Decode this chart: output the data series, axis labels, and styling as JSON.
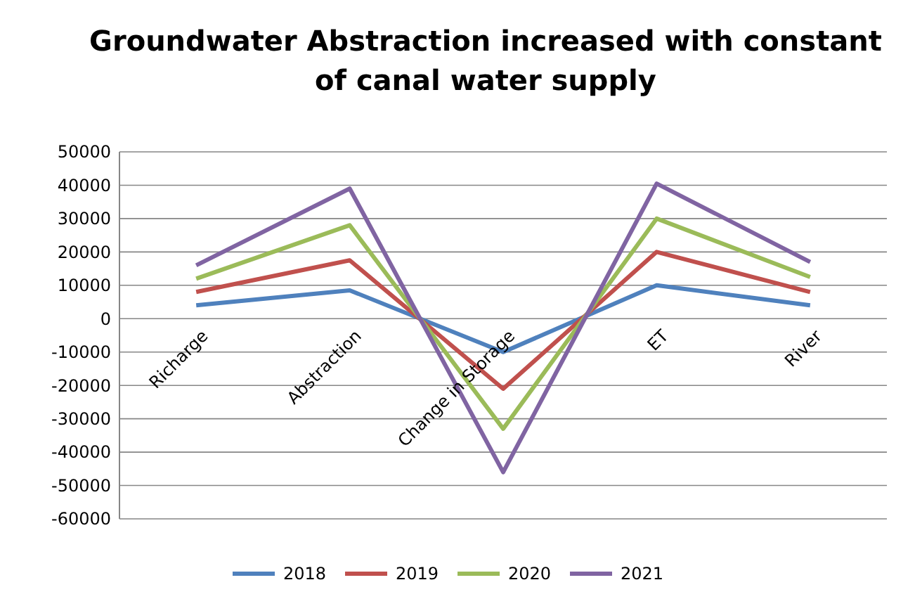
{
  "chart_data": {
    "type": "line",
    "title": "Groundwater Abstraction increased with constant of canal water supply",
    "categories": [
      "Richarge",
      "Abstraction",
      "Change in Storage",
      "ET",
      "River"
    ],
    "series": [
      {
        "name": "2018",
        "color": "#4f81bd",
        "values": [
          4000,
          8500,
          -10000,
          10000,
          4000
        ]
      },
      {
        "name": "2019",
        "color": "#c0504d",
        "values": [
          8000,
          17500,
          -21000,
          20000,
          8000
        ]
      },
      {
        "name": "2020",
        "color": "#9bbb59",
        "values": [
          12000,
          28000,
          -33000,
          30000,
          12500
        ]
      },
      {
        "name": "2021",
        "color": "#8064a2",
        "values": [
          16000,
          39000,
          -46000,
          40500,
          17000
        ]
      }
    ],
    "ylim": [
      -60000,
      50000
    ],
    "yticks": [
      -60000,
      -50000,
      -40000,
      -30000,
      -20000,
      -10000,
      0,
      10000,
      20000,
      30000,
      40000,
      50000
    ],
    "grid": "y",
    "legend": "bottom",
    "marker": "none",
    "line_style": "solid"
  }
}
